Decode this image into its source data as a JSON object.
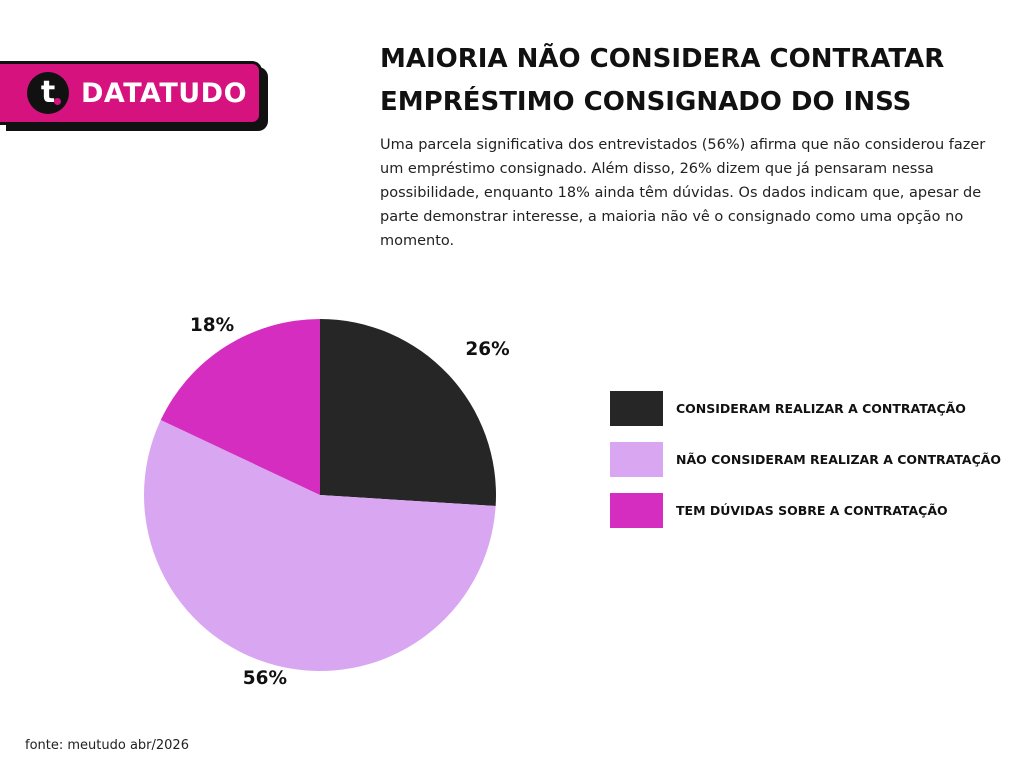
{
  "brand": {
    "logo_letter": "t",
    "name": "DATATUDO",
    "color": "#d6127f"
  },
  "title_lines": [
    "MAIORIA NÃO CONSIDERA CONTRATAR",
    "EMPRÉSTIMO CONSIGNADO DO INSS"
  ],
  "description": "Uma parcela significativa dos entrevistados (56%) afirma que não considerou fazer um empréstimo consignado. Além disso, 26% dizem que já pensaram nessa possibilidade, enquanto 18% ainda têm dúvidas. Os dados indicam que, apesar de parte demonstrar interesse, a maioria não vê o consignado como uma opção no momento.",
  "chart_data": {
    "type": "pie",
    "title": "",
    "start": "top",
    "direction": "clockwise",
    "slices": [
      {
        "label": "CONSIDERAM REALIZAR A CONTRATAÇÃO",
        "value": 26,
        "display": "26%",
        "color": "#262626"
      },
      {
        "label": "NÃO CONSIDERAM REALIZAR A CONTRATAÇÃO",
        "value": 56,
        "display": "56%",
        "color": "#d9a7f1"
      },
      {
        "label": "TEM DÚVIDAS SOBRE A CONTRATAÇÃO",
        "value": 18,
        "display": "18%",
        "color": "#d42dbf"
      }
    ],
    "legend": "right"
  },
  "source": "fonte: meutudo abr/2026"
}
